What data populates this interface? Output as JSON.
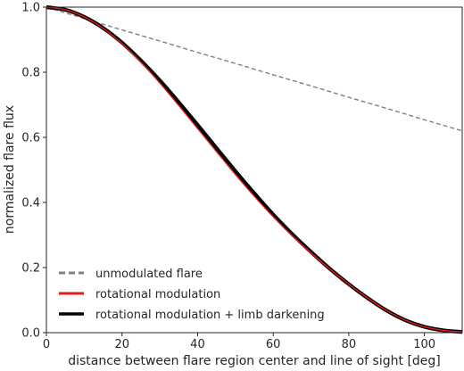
{
  "chart_data": {
    "type": "line",
    "title": "",
    "xlabel": "distance between flare region center and line of sight [deg]",
    "ylabel": "normalized flare flux",
    "xlim": [
      0,
      110
    ],
    "ylim": [
      0.0,
      1.0
    ],
    "xticks": [
      0,
      20,
      40,
      60,
      80,
      100
    ],
    "yticks": [
      0.0,
      0.2,
      0.4,
      0.6,
      0.8,
      1.0
    ],
    "ytick_labels": [
      "0.0",
      "0.2",
      "0.4",
      "0.6",
      "0.8",
      "1.0"
    ],
    "grid": false,
    "legend_position": "lower-left",
    "series": [
      {
        "name": "unmodulated flare",
        "color": "#808080",
        "style": "dashed",
        "x": [
          0,
          10,
          20,
          30,
          40,
          50,
          60,
          70,
          80,
          90,
          100,
          110
        ],
        "y": [
          1.0,
          0.965,
          0.93,
          0.896,
          0.861,
          0.827,
          0.792,
          0.758,
          0.723,
          0.689,
          0.654,
          0.62
        ]
      },
      {
        "name": "rotational modulation + limb darkening",
        "color": "#000000",
        "style": "solid",
        "x": [
          0,
          5,
          10,
          15,
          20,
          25,
          30,
          35,
          40,
          45,
          50,
          55,
          60,
          65,
          70,
          75,
          80,
          85,
          90,
          95,
          100,
          105,
          110
        ],
        "y": [
          1.0,
          0.992,
          0.97,
          0.936,
          0.891,
          0.836,
          0.775,
          0.708,
          0.638,
          0.567,
          0.496,
          0.428,
          0.363,
          0.303,
          0.248,
          0.196,
          0.149,
          0.106,
          0.068,
          0.038,
          0.018,
          0.007,
          0.002
        ]
      },
      {
        "name": "rotational modulation",
        "color": "#e41a1c",
        "style": "solid",
        "x": [
          0,
          5,
          10,
          15,
          20,
          25,
          30,
          35,
          40,
          45,
          50,
          55,
          60,
          65,
          70,
          75,
          80,
          85,
          90,
          95,
          100,
          105,
          110
        ],
        "y": [
          1.0,
          0.992,
          0.97,
          0.935,
          0.888,
          0.831,
          0.767,
          0.698,
          0.627,
          0.556,
          0.486,
          0.419,
          0.356,
          0.298,
          0.245,
          0.195,
          0.149,
          0.106,
          0.068,
          0.038,
          0.018,
          0.007,
          0.002
        ]
      }
    ],
    "legend": [
      {
        "label": "unmodulated flare",
        "color": "#808080",
        "style": "dashed"
      },
      {
        "label": "rotational modulation",
        "color": "#e41a1c",
        "style": "solid"
      },
      {
        "label": "rotational modulation + limb darkening",
        "color": "#000000",
        "style": "solid"
      }
    ]
  }
}
